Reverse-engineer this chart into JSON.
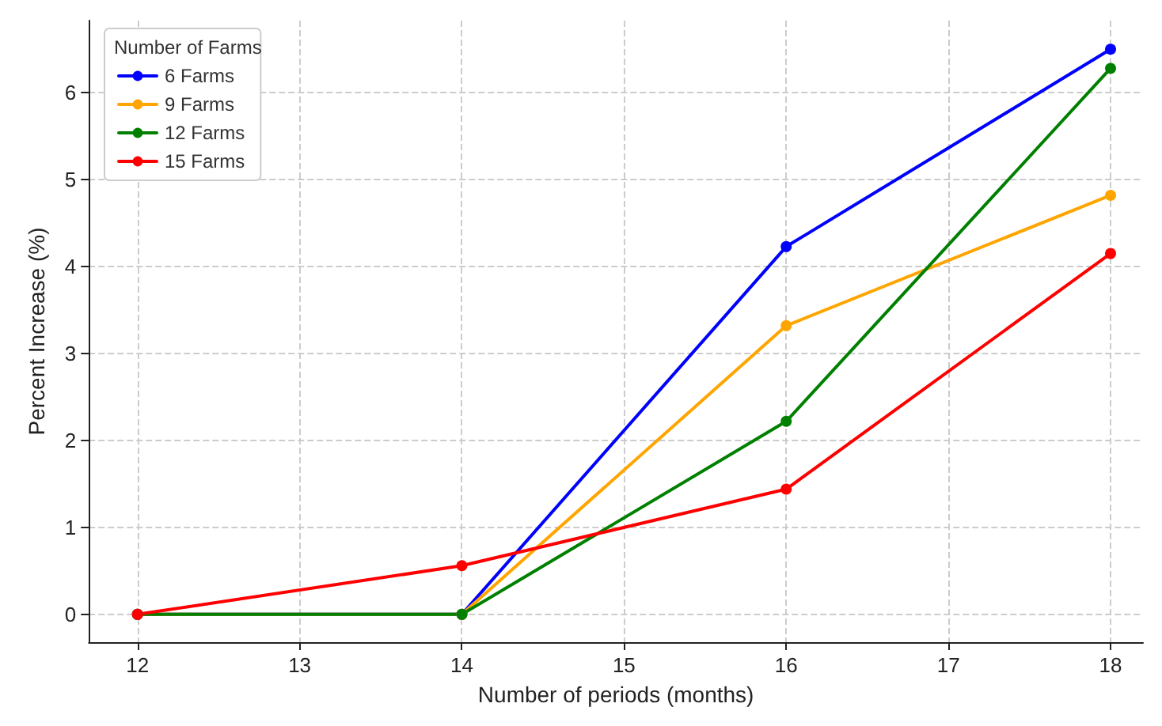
{
  "chart_data": {
    "type": "line",
    "xlabel": "Number of periods (months)",
    "ylabel": "Percent Increase (%)",
    "legend_title": "Number of Farms",
    "x": [
      12,
      14,
      16,
      18
    ],
    "series": [
      {
        "name": "6 Farms",
        "color": "#0000ff",
        "values": [
          0,
          0,
          4.23,
          6.5
        ]
      },
      {
        "name": "9 Farms",
        "color": "#ffa500",
        "values": [
          0,
          0,
          3.32,
          4.82
        ]
      },
      {
        "name": "12 Farms",
        "color": "#008000",
        "values": [
          0,
          0,
          2.22,
          6.28
        ]
      },
      {
        "name": "15 Farms",
        "color": "#ff0000",
        "values": [
          0,
          0.56,
          1.44,
          4.15
        ]
      }
    ],
    "xlim": [
      11.7,
      18.2
    ],
    "xticks": [
      12,
      13,
      14,
      15,
      16,
      17,
      18
    ],
    "ylim": [
      -0.32,
      6.83
    ],
    "yticks": [
      0,
      1,
      2,
      3,
      4,
      5,
      6
    ],
    "grid": true,
    "legend": "top left",
    "marker": "circle",
    "line_style": "solid"
  }
}
